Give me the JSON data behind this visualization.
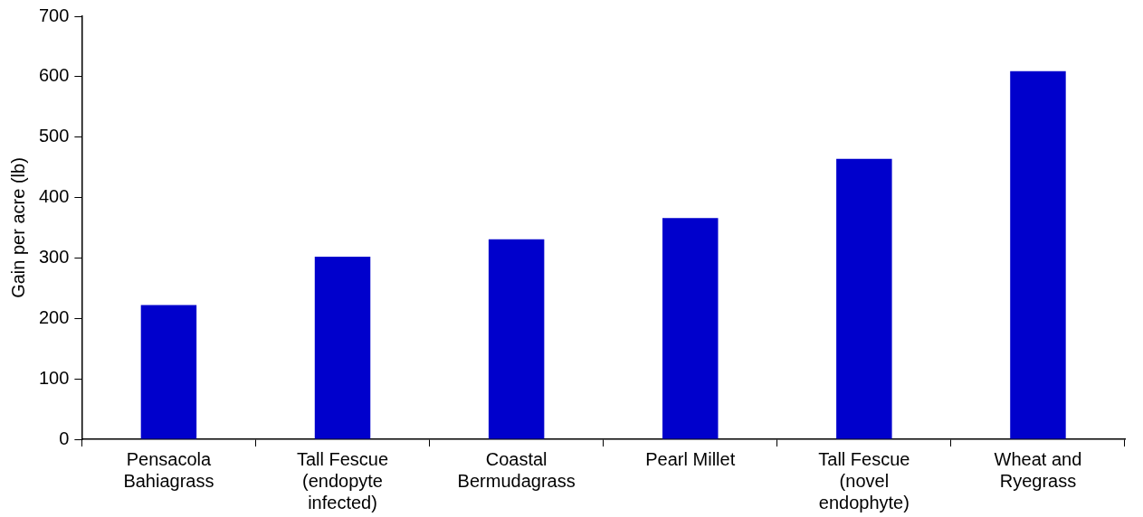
{
  "chart_data": {
    "type": "bar",
    "ylabel": "Gain per acre (lb)",
    "categories": [
      "Pensacola\nBahiagrass",
      "Tall Fescue\n(endopyte\ninfected)",
      "Coastal\nBermudagrass",
      "Pearl Millet",
      "Tall Fescue\n(novel\nendophyte)",
      "Wheat and\nRyegrass"
    ],
    "values": [
      222,
      302,
      331,
      366,
      464,
      609
    ],
    "color": "#0000cc",
    "ylim": [
      0,
      700
    ],
    "yticks": [
      0,
      100,
      200,
      300,
      400,
      500,
      600,
      700
    ],
    "grid": false,
    "legend": false
  }
}
